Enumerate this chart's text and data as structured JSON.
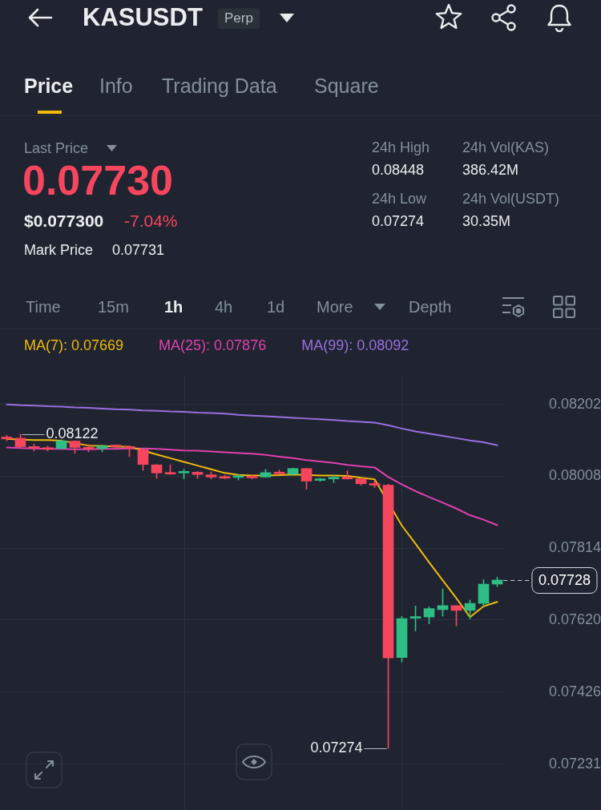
{
  "chart_data": {
    "type": "candlestick",
    "title": "KASUSDT",
    "categories": [
      null,
      null,
      null,
      null,
      null,
      null,
      null,
      null,
      null,
      null,
      null,
      null,
      null,
      null,
      null,
      null,
      null,
      null,
      null,
      null,
      null,
      null,
      null,
      null,
      null,
      null,
      null,
      null,
      null,
      null,
      null,
      null,
      null,
      null,
      null,
      null,
      null
    ],
    "ohlc": [
      [
        0.08114,
        0.08119,
        0.08104,
        0.08109
      ],
      [
        0.08111,
        0.08122,
        0.08084,
        0.08088
      ],
      [
        0.08088,
        0.08095,
        0.08076,
        0.08084
      ],
      [
        0.08083,
        0.0809,
        0.08077,
        0.08081
      ],
      [
        0.08083,
        0.08107,
        0.08082,
        0.08104
      ],
      [
        0.08103,
        0.08104,
        0.0807,
        0.08086
      ],
      [
        0.08085,
        0.08094,
        0.08074,
        0.08082
      ],
      [
        0.08083,
        0.08092,
        0.08074,
        0.0809
      ],
      [
        0.08091,
        0.08093,
        0.08082,
        0.08088
      ],
      [
        0.08087,
        0.0809,
        0.08061,
        0.08084
      ],
      [
        0.0808,
        0.08082,
        0.08024,
        0.0804
      ],
      [
        0.08039,
        0.0804,
        0.08002,
        0.08017
      ],
      [
        0.08017,
        0.08039,
        0.08013,
        0.08014
      ],
      [
        0.08017,
        0.08027,
        0.08001,
        0.08019
      ],
      [
        0.08019,
        0.08021,
        0.08002,
        0.08013
      ],
      [
        0.08012,
        0.0802,
        0.08001,
        0.08006
      ],
      [
        0.08006,
        0.08011,
        0.08001,
        0.08003
      ],
      [
        0.08005,
        0.08013,
        0.07998,
        0.08008
      ],
      [
        0.08007,
        0.08011,
        0.08001,
        0.08004
      ],
      [
        0.08006,
        0.08027,
        0.08005,
        0.08018
      ],
      [
        0.08018,
        0.08025,
        0.08014,
        0.08015
      ],
      [
        0.08014,
        0.0803,
        0.08011,
        0.08029
      ],
      [
        0.08029,
        0.0803,
        0.07973,
        0.07995
      ],
      [
        0.07997,
        0.08003,
        0.07994,
        0.08001
      ],
      [
        0.08001,
        0.08011,
        0.07991,
        0.08005
      ],
      [
        0.08006,
        0.08023,
        0.08,
        0.08001
      ],
      [
        0.08001,
        0.08001,
        0.07984,
        0.07988
      ],
      [
        0.07987,
        0.07997,
        0.07978,
        0.07984
      ],
      [
        0.07984,
        0.07987,
        0.07274,
        0.07518
      ],
      [
        0.07519,
        0.0763,
        0.07507,
        0.07624
      ],
      [
        0.07625,
        0.07658,
        0.07591,
        0.07627
      ],
      [
        0.07628,
        0.07656,
        0.0761,
        0.07651
      ],
      [
        0.07648,
        0.07704,
        0.07631,
        0.07659
      ],
      [
        0.07659,
        0.07659,
        0.07604,
        0.07646
      ],
      [
        0.07646,
        0.07674,
        0.07623,
        0.07665
      ],
      [
        0.07665,
        0.07729,
        0.07656,
        0.07717
      ],
      [
        0.07717,
        0.07736,
        0.0771,
        0.07728
      ]
    ],
    "series": [
      {
        "name": "MA(7): 0.07669",
        "type": "line",
        "color": "#f0b90b",
        "values": [
          0.08109,
          0.08107,
          0.08106,
          0.08106,
          0.08104,
          null,
          0.08091,
          0.0809,
          0.08088,
          0.08088,
          null,
          0.08067,
          0.08057,
          0.08047,
          0.08037,
          0.08027,
          0.08017,
          0.08012,
          0.0801,
          0.0801,
          0.08011,
          0.08013,
          null,
          0.0801,
          0.0801,
          0.08009,
          0.08004,
          0.08,
          null,
          0.07875,
          0.07826,
          0.07776,
          0.07727,
          0.07679,
          0.07628,
          0.07657,
          0.07669
        ]
      },
      {
        "name": "MA(25): 0.07876",
        "type": "line",
        "color": "#e040b0",
        "values": [
          0.08086,
          0.08084,
          0.08083,
          0.08082,
          0.08082,
          0.08081,
          0.08081,
          0.08082,
          0.08082,
          0.08083,
          0.08083,
          0.08082,
          0.0808,
          0.08078,
          0.08077,
          0.08075,
          0.08073,
          0.08071,
          0.08069,
          0.08066,
          0.08061,
          0.08057,
          0.08052,
          0.08048,
          0.08044,
          0.08039,
          0.08035,
          0.08032,
          0.08006,
          0.07986,
          0.07968,
          0.07952,
          0.07937,
          0.07921,
          0.07903,
          0.07891,
          0.07876
        ]
      },
      {
        "name": "MA(99): 0.08092",
        "type": "line",
        "color": "#9a6fe0",
        "values": [
          0.08202,
          0.082,
          0.08199,
          0.08197,
          0.08196,
          0.08194,
          0.08193,
          0.08191,
          0.08189,
          0.08188,
          0.08186,
          0.08185,
          0.08183,
          0.08182,
          0.0818,
          0.08179,
          0.08177,
          0.08174,
          0.08172,
          0.0817,
          0.08168,
          0.08166,
          0.08164,
          0.08162,
          0.0816,
          0.08157,
          0.08155,
          0.08153,
          0.08146,
          0.08137,
          0.08129,
          0.08123,
          0.08117,
          0.08111,
          0.08105,
          0.081,
          0.08092
        ]
      }
    ],
    "ylim": [
      0.0723,
      0.0828
    ],
    "yticks": [
      0.07231,
      0.07426,
      {
        "value": 0.0762,
        "label": "0.07620"
      },
      0.07814,
      0.08008,
      0.08202
    ],
    "grid": "y",
    "legend": "top left",
    "marker": "none",
    "annotations": [
      "Perp",
      "Price",
      "Info",
      "Trading Data",
      "Square",
      "Last Price",
      "0.07730",
      "$0.077300",
      "-7.04%",
      "Mark Price",
      "0.07731",
      "24h High",
      "0.08448",
      "24h Vol(KAS)",
      "386.42M",
      "24h Low",
      "0.07274",
      "24h Vol(USDT)",
      "30.35M",
      "Time",
      "15m",
      "1h",
      "4h",
      "1d",
      "More",
      "Depth",
      "0.08122",
      "0.07274",
      "0.07728"
    ]
  }
}
